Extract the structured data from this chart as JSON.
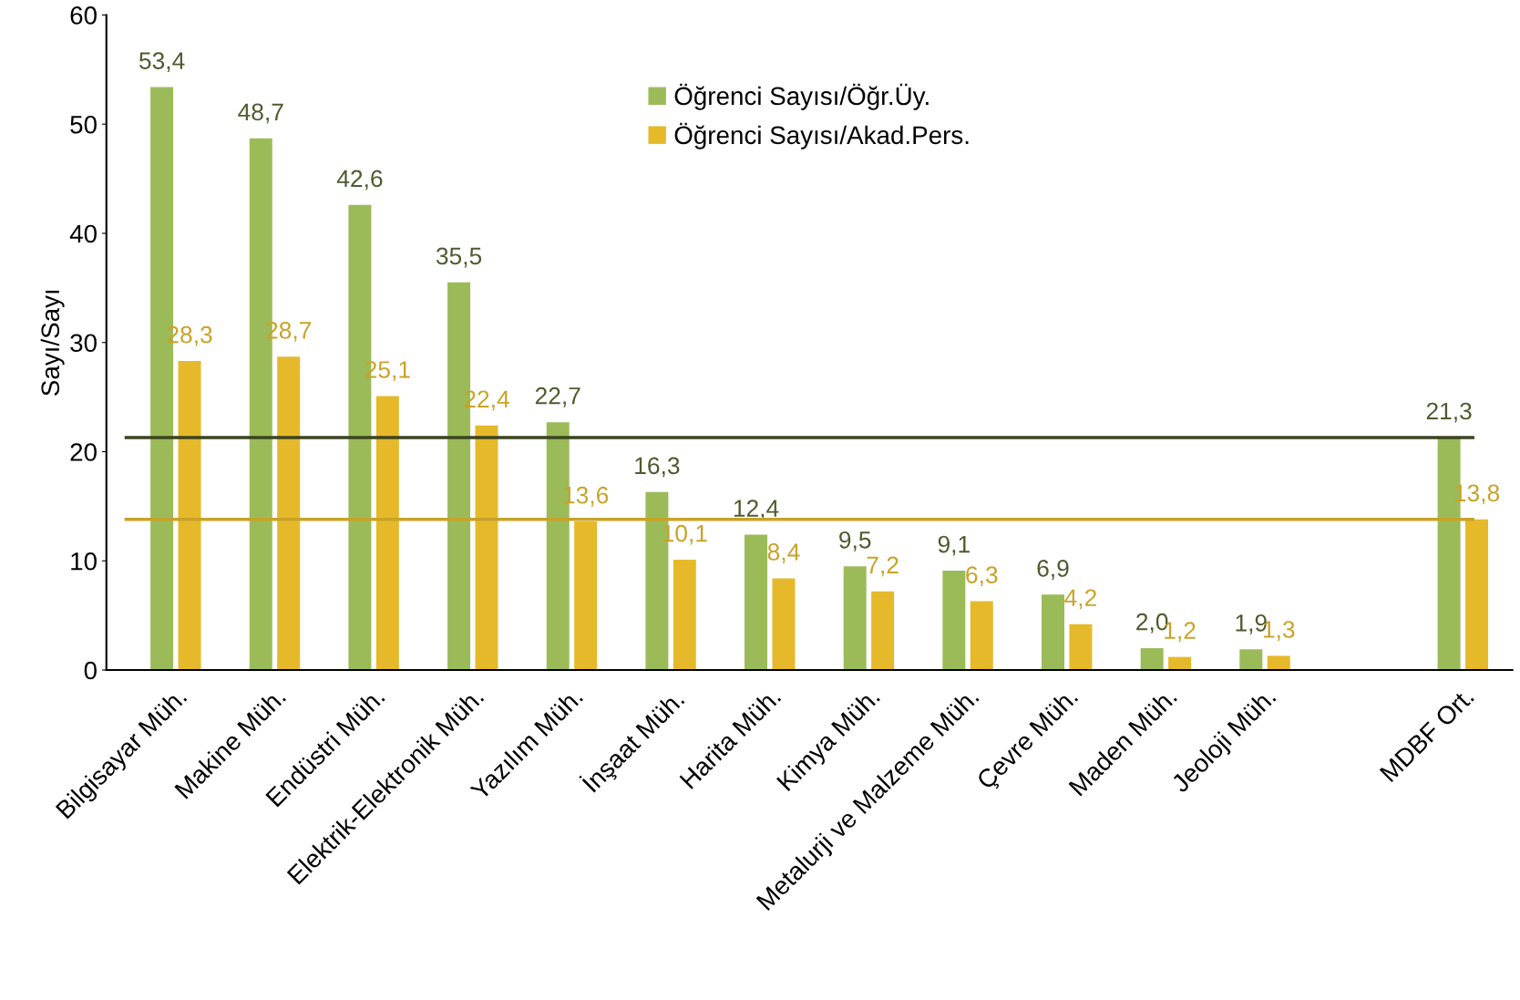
{
  "chart_data": {
    "type": "bar",
    "ylabel": "Sayı/Sayı",
    "categories": [
      "Bilgisayar Müh.",
      "Makine Müh.",
      "Endüstri Müh.",
      "Elektrik-Elektronik Müh.",
      "Yazılım Müh.",
      "İnşaat Müh.",
      "Harita Müh.",
      "Kimya Müh.",
      "Metalurji ve Malzeme Müh.",
      "Çevre Müh.",
      "Maden Müh.",
      "Jeoloji Müh.",
      null,
      "MDBF Ort."
    ],
    "series": [
      {
        "name": "Öğrenci Sayısı/Öğr.Üy.",
        "color": "#9bbb59",
        "values": [
          53.4,
          48.7,
          42.6,
          35.5,
          22.7,
          16.3,
          12.4,
          9.5,
          9.1,
          6.9,
          2.0,
          1.9,
          null,
          21.3
        ],
        "value_labels": [
          "53,4",
          "48,7",
          "42,6",
          "35,5",
          "22,7",
          "16,3",
          "12,4",
          "9,5",
          "9,1",
          "6,9",
          "2,0",
          "1,9",
          null,
          "21,3"
        ]
      },
      {
        "name": "Öğrenci Sayısı/Akad.Pers.",
        "color": "#e6b92b",
        "values": [
          28.3,
          28.7,
          25.1,
          22.4,
          13.6,
          10.1,
          8.4,
          7.2,
          6.3,
          4.2,
          1.2,
          1.3,
          null,
          13.8
        ],
        "value_labels": [
          "28,3",
          "28,7",
          "25,1",
          "22,4",
          "13,6",
          "10,1",
          "8,4",
          "7,2",
          "6,3",
          "4,2",
          "1,2",
          "1,3",
          null,
          "13,8"
        ]
      }
    ],
    "ref_lines": [
      {
        "axis": "y",
        "value": 21.3,
        "color": "#3b4420"
      },
      {
        "axis": "y",
        "value": 13.8,
        "color": "#c9a227"
      }
    ],
    "ylim": [
      0,
      60
    ],
    "yticks": [
      0,
      10,
      20,
      30,
      40,
      50,
      60
    ],
    "grid": false,
    "legend": "top"
  }
}
